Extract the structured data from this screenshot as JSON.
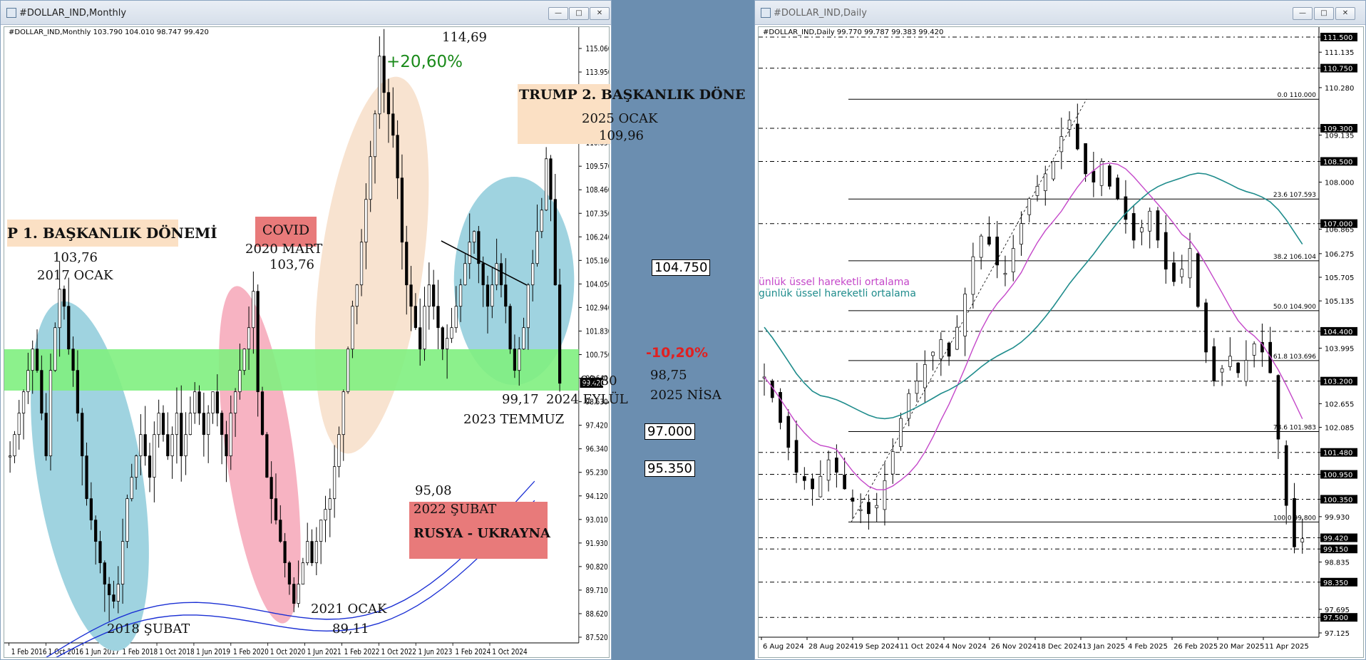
{
  "left_window": {
    "title": "#DOLLAR_IND,Monthly",
    "symbol_info": "#DOLLAR_IND,Monthly  103.790 104.010 98.747 99.420",
    "x_labels": [
      "1 Feb 2016",
      "1 Oct 2016",
      "1 Jun 2017",
      "1 Feb 2018",
      "1 Oct 2018",
      "1 Jun 2019",
      "1 Feb 2020",
      "1 Oct 2020",
      "1 Jun 2021",
      "1 Feb 2022",
      "1 Oct 2022",
      "1 Jun 2023",
      "1 Feb 2024",
      "1 Oct 2024"
    ],
    "y_labels": [
      "115.060",
      "113.950",
      "112.870",
      "111.760",
      "110.650",
      "109.570",
      "108.460",
      "107.350",
      "106.240",
      "105.160",
      "104.050",
      "102.940",
      "101.830",
      "100.750",
      "99.640",
      "98.530",
      "97.420",
      "96.340",
      "95.230",
      "94.120",
      "93.010",
      "91.930",
      "90.820",
      "89.710",
      "88.620",
      "87.520"
    ],
    "current_price": "99.420",
    "annotations": {
      "trump1_title": "P 1. BAŞKANLIK DÖNEMİ",
      "trump1_value": "103,76",
      "trump1_date": "2017 OCAK",
      "covid_title": "COVID",
      "covid_date": "2020 MART",
      "covid_value": "103,76",
      "peak_pct": "+20,60%",
      "peak_value": "114,69",
      "trump2_title": "TRUMP 2. BAŞKANLIK DÖNE",
      "trump2_date": "2025 OCAK",
      "trump2_value": "109,96",
      "low_2018_date": "2018 ŞUBAT",
      "low_2021_date": "2021 OCAK",
      "low_2021_value": "89,11",
      "low_2021_jun": "95,08",
      "war_date": "2022 ŞUBAT",
      "war_title": "RUSYA - UKRAYNA",
      "v_9917": "99,17",
      "temmuz": "2023 TEMMUZ",
      "v_9980": "99,80",
      "eylul": "2024 EYLÜL",
      "drop_pct": "-10,20%",
      "v_9875": "98,75",
      "nisan": "2025 NİSA",
      "box_104750": "104.750",
      "box_97000": "97.000",
      "box_95350": "95.350"
    }
  },
  "right_window": {
    "title": "#DOLLAR_IND,Daily",
    "symbol_info": "#DOLLAR_IND,Daily  99.770 99.787 99.383 99.420",
    "x_labels": [
      "6 Aug 2024",
      "28 Aug 2024",
      "19 Sep 2024",
      "11 Oct 2024",
      "4 Nov 2024",
      "26 Nov 2024",
      "18 Dec 2024",
      "13 Jan 2025",
      "4 Feb 2025",
      "26 Feb 2025",
      "20 Mar 2025",
      "11 Apr 2025"
    ],
    "y_labels": [
      "111.500",
      "111.135",
      "110.750",
      "110.280",
      "109.300",
      "109.135",
      "108.500",
      "108.000",
      "107.000",
      "106.865",
      "106.275",
      "105.705",
      "105.135",
      "104.400",
      "103.995",
      "103.200",
      "102.655",
      "102.085",
      "101.480",
      "100.950",
      "100.350",
      "99.930",
      "99.420",
      "99.150",
      "98.835",
      "98.350",
      "97.695",
      "97.500",
      "97.125"
    ],
    "boxed_levels": [
      "111.500",
      "110.750",
      "109.300",
      "108.500",
      "107.000",
      "104.400",
      "103.200",
      "102.650",
      "101.480",
      "100.950",
      "100.350",
      "99.420",
      "99.150",
      "98.350",
      "97.500"
    ],
    "fib_levels": [
      {
        "label": "0.0 110.000"
      },
      {
        "label": "23.6 107.593"
      },
      {
        "label": "38.2 106.104"
      },
      {
        "label": "50.0 104.900"
      },
      {
        "label": "61.8 103.696"
      },
      {
        "label": "78.6 101.983"
      },
      {
        "label": "100.0 99.800"
      }
    ],
    "ma_label_1": "ünlük üssel hareketli ortalama",
    "ma_label_2": "günlük üssel hareketli ortalama"
  },
  "colors": {
    "green_zone": "#7ff07f",
    "blue_ellipse": "#9fd3e0",
    "pink_ellipse": "#f7b3c2",
    "peach_ellipse": "#f8e3d0",
    "red_box": "#e87a7a",
    "peach_box": "#fbe0c4",
    "ma_blue": "#1a2fd4",
    "ma_magenta": "#c447c9",
    "ma_teal": "#1f8c8c"
  }
}
